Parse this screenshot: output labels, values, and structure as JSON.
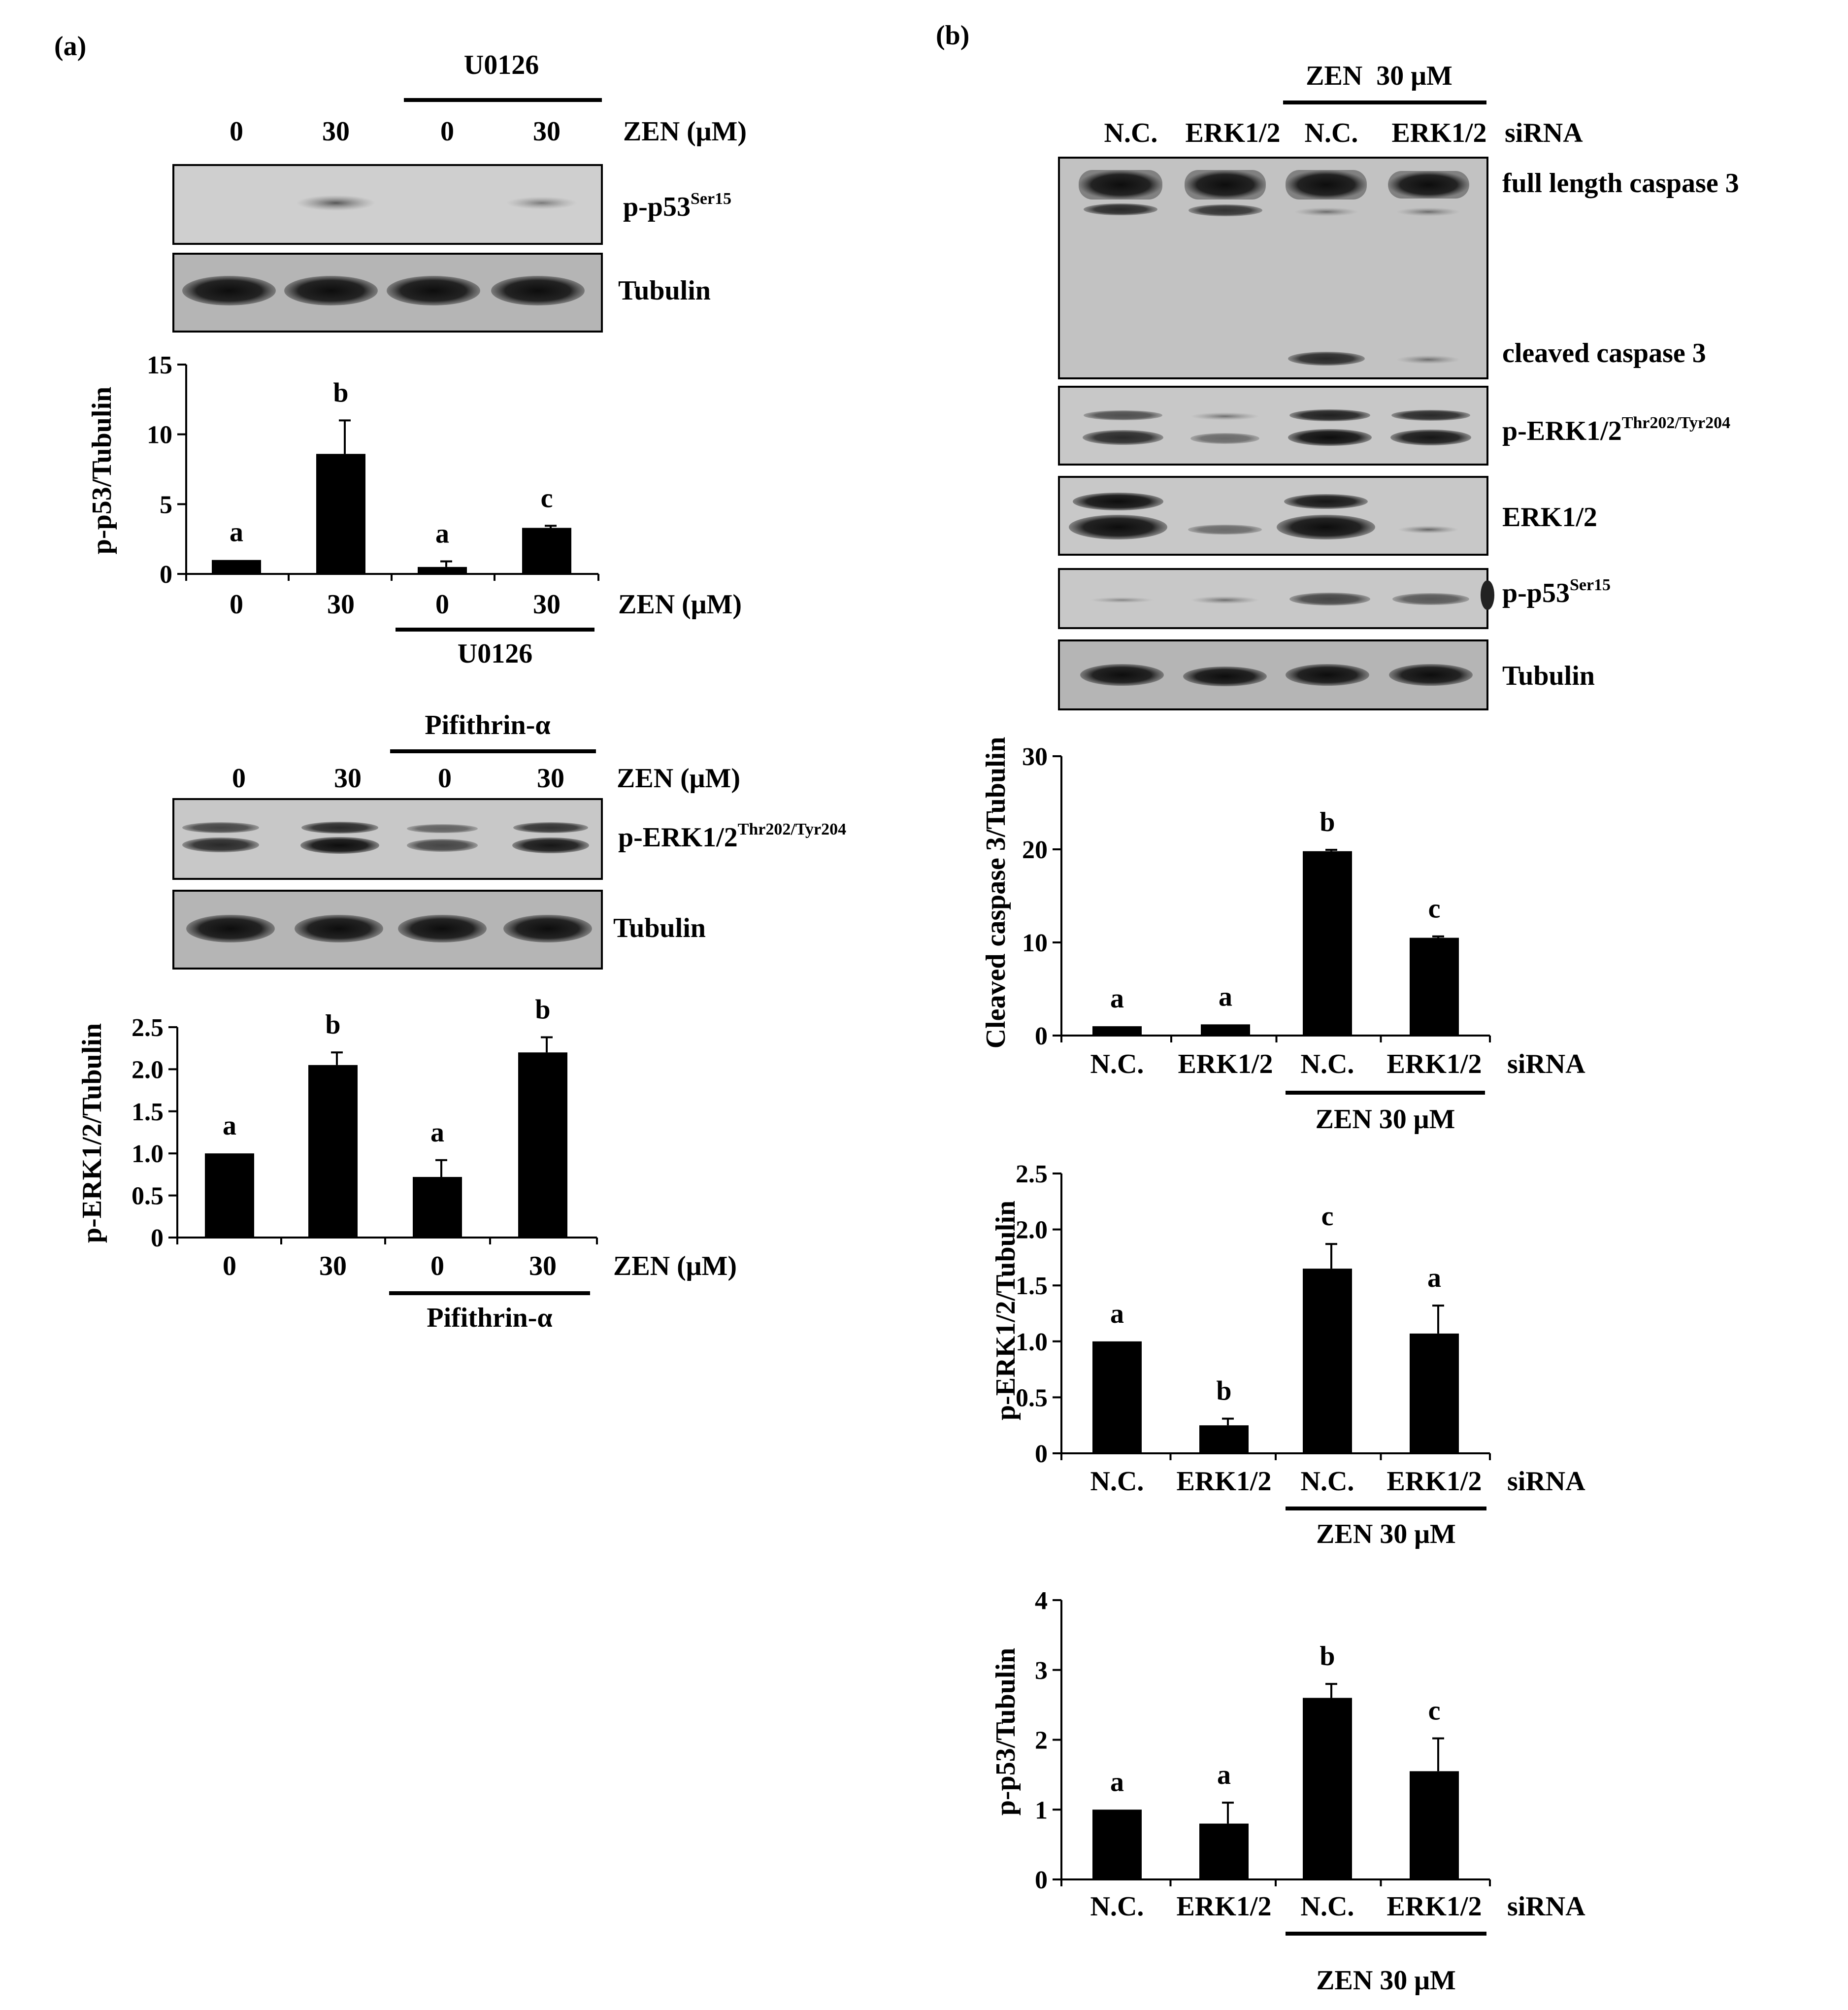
{
  "panels": {
    "a": {
      "label": "(a)",
      "blot1": {
        "treatment_label": "U0126",
        "lanes": [
          "0",
          "30",
          "0",
          "30"
        ],
        "axis_label": "ZEN (μM)",
        "bands": {
          "top": {
            "base": "p-p53",
            "sup": "Ser15"
          },
          "bottom": {
            "base": "Tubulin",
            "sup": ""
          }
        }
      },
      "blot2": {
        "treatment_label": "Pifithrin-α",
        "lanes": [
          "0",
          "30",
          "0",
          "30"
        ],
        "axis_label": "ZEN (μM)",
        "bands": {
          "top": {
            "base": "p-ERK1/2",
            "sup": "Thr202/Tyr204"
          },
          "bottom": {
            "base": "Tubulin",
            "sup": ""
          }
        }
      }
    },
    "b": {
      "label": "(b)",
      "blot": {
        "treatment_label": "ZEN  30 μM",
        "lanes": [
          "N.C.",
          "ERK1/2",
          "N.C.",
          "ERK1/2"
        ],
        "axis_label": "siRNA",
        "bands": {
          "full_caspase": {
            "base": "full length caspase 3",
            "sup": ""
          },
          "cleaved_caspase": {
            "base": "cleaved caspase 3",
            "sup": ""
          },
          "perk": {
            "base": "p-ERK1/2",
            "sup": "Thr202/Tyr204"
          },
          "erk": {
            "base": "ERK1/2",
            "sup": ""
          },
          "pp53": {
            "base": "p-p53",
            "sup": "Ser15"
          },
          "tubulin": {
            "base": "Tubulin",
            "sup": ""
          }
        }
      }
    }
  },
  "chart_data": [
    {
      "id": "a1",
      "type": "bar",
      "ylabel": "p-p53/Tubulin",
      "xlabel": "ZEN (μM)",
      "group_label": "U0126",
      "categories": [
        "0",
        "30",
        "0",
        "30"
      ],
      "values": [
        1.0,
        8.6,
        0.5,
        3.3
      ],
      "errors": [
        0,
        2.4,
        0.4,
        0.15
      ],
      "letters": [
        "a",
        "b",
        "a",
        "c"
      ],
      "ylim": [
        0,
        15
      ],
      "yticks": [
        0,
        5,
        10,
        15
      ],
      "ytick_labels": [
        "0",
        "5",
        "10",
        "15"
      ]
    },
    {
      "id": "a2",
      "type": "bar",
      "ylabel": "p-ERK1/2/Tubulin",
      "xlabel": "ZEN (μM)",
      "group_label": "Pifithrin-α",
      "categories": [
        "0",
        "30",
        "0",
        "30"
      ],
      "values": [
        1.0,
        2.05,
        0.72,
        2.2
      ],
      "errors": [
        0,
        0.15,
        0.2,
        0.18
      ],
      "letters": [
        "a",
        "b",
        "a",
        "b"
      ],
      "ylim": [
        0,
        2.5
      ],
      "yticks": [
        0,
        0.5,
        1.0,
        1.5,
        2.0,
        2.5
      ],
      "ytick_labels": [
        "0",
        "0.5",
        "1.0",
        "1.5",
        "2.0",
        "2.5"
      ]
    },
    {
      "id": "b1",
      "type": "bar",
      "ylabel": "Cleaved caspase 3/Tubulin",
      "xlabel": "siRNA",
      "group_label": "ZEN  30 μM",
      "categories": [
        "N.C.",
        "ERK1/2",
        "N.C.",
        "ERK1/2"
      ],
      "values": [
        1.0,
        1.2,
        19.8,
        10.5
      ],
      "errors": [
        0,
        0,
        0.15,
        0.15
      ],
      "letters": [
        "a",
        "a",
        "b",
        "c"
      ],
      "ylim": [
        0,
        30
      ],
      "yticks": [
        0,
        10,
        20,
        30
      ],
      "ytick_labels": [
        "0",
        "10",
        "20",
        "30"
      ]
    },
    {
      "id": "b2",
      "type": "bar",
      "ylabel": "p-ERK1/2/Tubulin",
      "xlabel": "siRNA",
      "group_label": "ZEN  30 μM",
      "categories": [
        "N.C.",
        "ERK1/2",
        "N.C.",
        "ERK1/2"
      ],
      "values": [
        1.0,
        0.25,
        1.65,
        1.07
      ],
      "errors": [
        0,
        0.06,
        0.22,
        0.25
      ],
      "letters": [
        "a",
        "b",
        "c",
        "a"
      ],
      "ylim": [
        0,
        2.5
      ],
      "yticks": [
        0,
        0.5,
        1.0,
        1.5,
        2.0,
        2.5
      ],
      "ytick_labels": [
        "0",
        "0.5",
        "1.0",
        "1.5",
        "2.0",
        "2.5"
      ]
    },
    {
      "id": "b3",
      "type": "bar",
      "ylabel": "p-p53/Tubulin",
      "xlabel": "siRNA",
      "group_label": "ZEN  30 μM",
      "categories": [
        "N.C.",
        "ERK1/2",
        "N.C.",
        "ERK1/2"
      ],
      "values": [
        1.0,
        0.8,
        2.6,
        1.55
      ],
      "errors": [
        0,
        0.3,
        0.2,
        0.47
      ],
      "letters": [
        "a",
        "a",
        "b",
        "c"
      ],
      "ylim": [
        0,
        4
      ],
      "yticks": [
        0,
        1,
        2,
        3,
        4
      ],
      "ytick_labels": [
        "0",
        "1",
        "2",
        "3",
        "4"
      ]
    }
  ]
}
